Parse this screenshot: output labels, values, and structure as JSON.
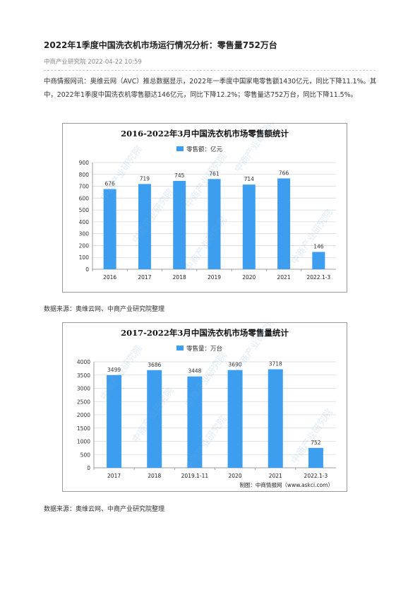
{
  "article": {
    "title": "2022年1季度中国洗衣机市场运行情况分析：零售量752万台",
    "meta": "中商产业研究院 2022-04-22 10:59",
    "paragraph": "中商情报网讯：奥维云网（AVC）推总数据显示，2022年一季度中国家电零售额1430亿元，同比下降11.1%。其中，2022年1季度中国洗衣机零售额达146亿元，同比下降12.2%；零售量达752万台，同比下降11.5%。"
  },
  "sources": {
    "source1": "数据来源：奥维云网、中商产业研究院整理",
    "source2": "数据来源：奥维云网、中商产业研究院整理"
  },
  "watermark": {
    "text": "中商产业研究院"
  },
  "chart_data": [
    {
      "type": "bar",
      "title": "2016-2022年3月中国洗衣机市场零售额统计",
      "legend": "零售额：亿元",
      "legend_position": "top-center",
      "categories": [
        "2016",
        "2017",
        "2018",
        "2019",
        "2020",
        "2021",
        "2022.1-3"
      ],
      "series": [
        {
          "name": "零售额：亿元",
          "values": [
            676,
            719,
            745,
            761,
            714,
            766,
            146
          ]
        }
      ],
      "data_labels": [
        "676",
        "719",
        "745",
        "761",
        "714",
        "766",
        "146"
      ],
      "yticks": [
        0,
        100,
        200,
        300,
        400,
        500,
        600,
        700,
        800,
        900
      ],
      "ylim": [
        0,
        900
      ],
      "grid": true,
      "color": "#3d9ef0"
    },
    {
      "type": "bar",
      "title": "2017-2022年3月中国洗衣机市场零售量统计",
      "legend": "零售量：万台",
      "legend_position": "top-center",
      "categories": [
        "2017",
        "2018",
        "2019.1-11",
        "2020",
        "2021",
        "2022.1-3"
      ],
      "series": [
        {
          "name": "零售量：万台",
          "values": [
            3499,
            3686,
            3448,
            3690,
            3718,
            752
          ]
        }
      ],
      "data_labels": [
        "3499",
        "3686",
        "3448",
        "3690",
        "3718",
        "752"
      ],
      "yticks": [
        0,
        500,
        1000,
        1500,
        2000,
        2500,
        3000,
        3500,
        4000
      ],
      "ylim": [
        0,
        4000
      ],
      "grid": true,
      "color": "#3d9ef0",
      "credit": "制图：中商情报网（www.askci.com）"
    }
  ]
}
